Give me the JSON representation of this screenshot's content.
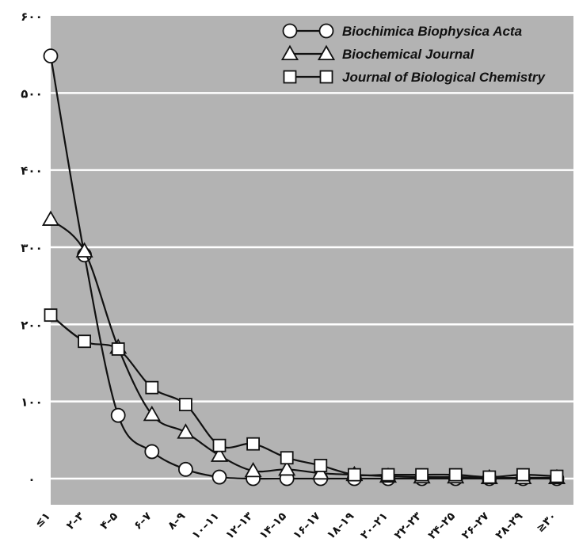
{
  "chart_data": {
    "type": "line",
    "title": "",
    "xlabel": "",
    "ylabel": "",
    "ylim": [
      0,
      600
    ],
    "yticks": [
      0,
      100,
      200,
      300,
      400,
      500,
      600
    ],
    "ytick_labels": [
      "۰",
      "۱۰۰",
      "۲۰۰",
      "۳۰۰",
      "۴۰۰",
      "۵۰۰",
      "۶۰۰"
    ],
    "categories": [
      "≤۱",
      "۲–۳",
      "۴–۵",
      "۶–۷",
      "۸–۹",
      "۱۰–۱۱",
      "۱۲–۱۳",
      "۱۴–۱۵",
      "۱۶–۱۷",
      "۱۸–۱۹",
      "۲۰–۲۱",
      "۲۲–۲۳",
      "۲۴–۲۵",
      "۲۶–۲۷",
      "۲۸–۲۹",
      "≥۳۰"
    ],
    "grid": true,
    "background": "#b3b3b3",
    "legend_position": "top-right",
    "series": [
      {
        "name": "Biochimica Biophysica Acta",
        "marker": "circle",
        "values": [
          548,
          290,
          82,
          35,
          12,
          2,
          0,
          0,
          0,
          0,
          0,
          0,
          0,
          0,
          0,
          0
        ]
      },
      {
        "name": "Biochemical Journal",
        "marker": "triangle",
        "values": [
          336,
          295,
          170,
          83,
          60,
          30,
          10,
          12,
          7,
          5,
          3,
          2,
          2,
          1,
          1,
          1
        ]
      },
      {
        "name": "Journal of Biological Chemistry",
        "marker": "square",
        "values": [
          212,
          178,
          168,
          118,
          96,
          43,
          45,
          27,
          17,
          5,
          5,
          5,
          5,
          2,
          5,
          3
        ]
      }
    ]
  }
}
